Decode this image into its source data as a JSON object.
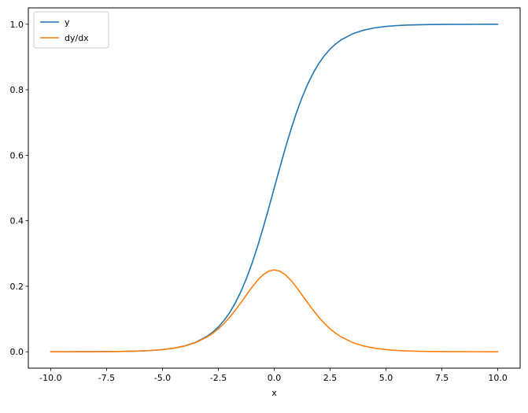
{
  "figure": {
    "background": "#ffffff"
  },
  "chart_data": {
    "type": "line",
    "title": "",
    "xlabel": "x",
    "ylabel": "",
    "xlim": [
      -11,
      11
    ],
    "ylim": [
      -0.05,
      1.05
    ],
    "x_ticks": [
      -10.0,
      -7.5,
      -5.0,
      -2.5,
      0.0,
      2.5,
      5.0,
      7.5,
      10.0
    ],
    "y_ticks": [
      0.0,
      0.2,
      0.4,
      0.6,
      0.8,
      1.0
    ],
    "grid": false,
    "legend_position": "upper left",
    "x": [
      -10,
      -9.5,
      -9,
      -8.5,
      -8,
      -7.5,
      -7,
      -6.5,
      -6,
      -5.5,
      -5,
      -4.5,
      -4,
      -3.5,
      -3,
      -2.75,
      -2.5,
      -2.25,
      -2,
      -1.75,
      -1.5,
      -1.25,
      -1,
      -0.75,
      -0.5,
      -0.25,
      0,
      0.25,
      0.5,
      0.75,
      1,
      1.25,
      1.5,
      1.75,
      2,
      2.25,
      2.5,
      2.75,
      3,
      3.5,
      4,
      4.5,
      5,
      5.5,
      6,
      6.5,
      7,
      7.5,
      8,
      8.5,
      9,
      9.5,
      10
    ],
    "series": [
      {
        "name": "y",
        "color": "#1f77b4",
        "values": [
          4.54e-05,
          7.48e-05,
          0.000123,
          0.000203,
          0.000335,
          0.000553,
          0.000911,
          0.001501,
          0.002473,
          0.00407,
          0.006693,
          0.010987,
          0.017986,
          0.029312,
          0.047426,
          0.060087,
          0.075858,
          0.095349,
          0.119203,
          0.148047,
          0.182426,
          0.2227,
          0.268941,
          0.320821,
          0.377541,
          0.437823,
          0.5,
          0.562177,
          0.622459,
          0.679179,
          0.731059,
          0.7773,
          0.817574,
          0.851953,
          0.880797,
          0.904651,
          0.924142,
          0.939913,
          0.952574,
          0.970688,
          0.982014,
          0.989013,
          0.993307,
          0.99593,
          0.997527,
          0.998499,
          0.999089,
          0.999447,
          0.999665,
          0.999797,
          0.999877,
          0.999925,
          0.999955
        ]
      },
      {
        "name": "dy/dx",
        "color": "#ff7f0e",
        "values": [
          4.54e-05,
          7.48e-05,
          0.000123,
          0.000203,
          0.000335,
          0.000552,
          0.00091,
          0.001499,
          0.002467,
          0.004054,
          0.006648,
          0.010866,
          0.017663,
          0.028453,
          0.045177,
          0.056476,
          0.070104,
          0.086258,
          0.104994,
          0.12613,
          0.149146,
          0.173101,
          0.196612,
          0.217895,
          0.235004,
          0.246134,
          0.25,
          0.246134,
          0.235004,
          0.217895,
          0.196612,
          0.173101,
          0.149146,
          0.12613,
          0.104994,
          0.086258,
          0.070104,
          0.056476,
          0.045177,
          0.028453,
          0.017663,
          0.010866,
          0.006648,
          0.004054,
          0.002467,
          0.001499,
          0.00091,
          0.000552,
          0.000335,
          0.000203,
          0.000123,
          7.48e-05,
          4.54e-05
        ]
      }
    ],
    "legend": [
      {
        "label": "y",
        "color": "#1f77b4"
      },
      {
        "label": "dy/dx",
        "color": "#ff7f0e"
      }
    ],
    "spine_color": "#000000",
    "legend_border_color": "#cccccc"
  }
}
